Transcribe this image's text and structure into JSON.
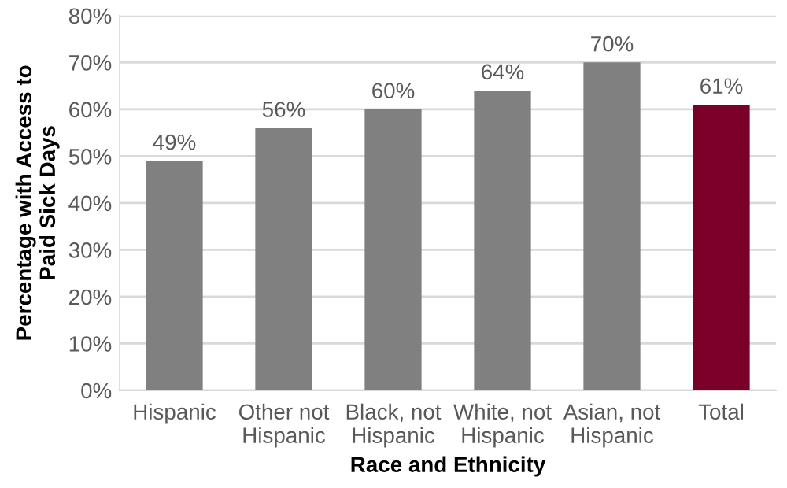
{
  "chart_data": {
    "type": "bar",
    "xlabel": "Race and Ethnicity",
    "ylabel": "Percentage with Access to\nPaid Sick Days",
    "categories": [
      "Hispanic",
      "Other not\nHispanic",
      "Black, not\nHispanic",
      "White, not\nHispanic",
      "Asian, not\nHispanic",
      "Total"
    ],
    "values": [
      49,
      56,
      60,
      64,
      70,
      61
    ],
    "colors": [
      "#808080",
      "#808080",
      "#808080",
      "#808080",
      "#808080",
      "#7b0029"
    ],
    "value_labels": [
      "49%",
      "56%",
      "60%",
      "64%",
      "70%",
      "61%"
    ],
    "ylim": [
      0,
      80
    ],
    "yticks": [
      {
        "value": 0,
        "label": "0%"
      },
      {
        "value": 10,
        "label": "10%"
      },
      {
        "value": 20,
        "label": "20%"
      },
      {
        "value": 30,
        "label": "30%"
      },
      {
        "value": 40,
        "label": "40%"
      },
      {
        "value": 50,
        "label": "50%"
      },
      {
        "value": 60,
        "label": "60%"
      },
      {
        "value": 70,
        "label": "70%"
      },
      {
        "value": 80,
        "label": "80%"
      }
    ],
    "grid": "y",
    "legend": false
  }
}
